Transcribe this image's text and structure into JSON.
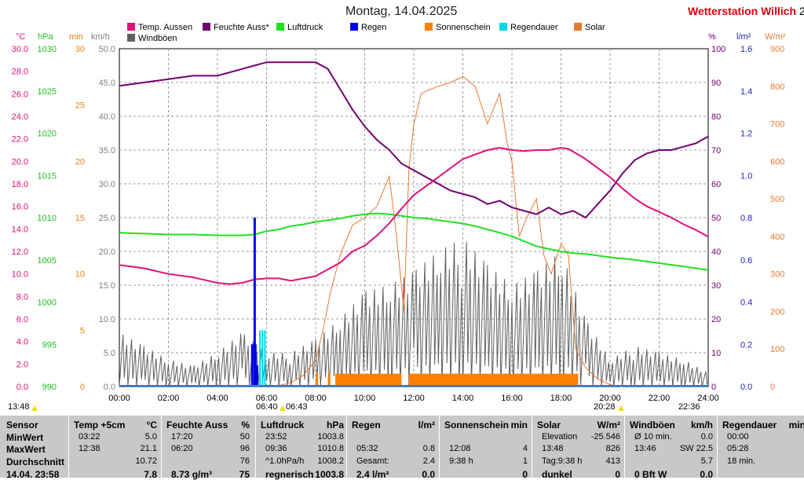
{
  "title": "Montag, 14.04.2025",
  "station": "Wetterstation Willich",
  "station_tail": "2",
  "legend": [
    {
      "label": "Temp. Aussen",
      "color": "#e0107a"
    },
    {
      "label": "Feuchte Auss*",
      "color": "#700070"
    },
    {
      "label": "Luftdruck",
      "color": "#20e020"
    },
    {
      "label": "Regen",
      "color": "#0000e8"
    },
    {
      "label": "Sonnenschein",
      "color": "#ff8000"
    },
    {
      "label": "Regendauer",
      "color": "#00d8e8"
    },
    {
      "label": "Solar",
      "color": "#e87830"
    },
    {
      "label": "Windböen",
      "color": "#606060"
    }
  ],
  "axes": {
    "temp": {
      "unit": "°C",
      "color": "#e0107a",
      "ticks": [
        "30.0",
        "28.0",
        "26.0",
        "24.0",
        "22.0",
        "20.0",
        "18.0",
        "16.0",
        "14.0",
        "12.0",
        "10.0",
        "8.0",
        "6.0",
        "4.0",
        "2.0",
        "0.0"
      ]
    },
    "pressure": {
      "unit": "hPa",
      "color": "#20c020",
      "ticks": [
        "1030",
        "1025",
        "1020",
        "1015",
        "1010",
        "1005",
        "1000",
        "995",
        "990"
      ]
    },
    "sun_min": {
      "unit": "min",
      "color": "#e88010",
      "ticks": [
        "30",
        "25",
        "20",
        "15",
        "10",
        "5",
        "0"
      ]
    },
    "wind": {
      "unit": "km/h",
      "color": "#808080",
      "ticks": [
        "50.0",
        "45.0",
        "40.0",
        "35.0",
        "30.0",
        "25.0",
        "20.0",
        "15.0",
        "10.0",
        "5.0",
        "0.0"
      ]
    },
    "humidity": {
      "unit": "%",
      "color": "#700070",
      "ticks": [
        "100",
        "90",
        "80",
        "70",
        "60",
        "50",
        "40",
        "30",
        "20",
        "10",
        "0"
      ]
    },
    "rain": {
      "unit": "l/m²",
      "color": "#2020c0",
      "ticks": [
        "1.6",
        "1.4",
        "1.2",
        "1.0",
        "0.8",
        "0.6",
        "0.4",
        "0.2",
        "0.0"
      ]
    },
    "solar": {
      "unit": "W/m²",
      "color": "#e87830",
      "ticks": [
        "900",
        "800",
        "700",
        "600",
        "500",
        "400",
        "300",
        "200",
        "100",
        "0"
      ]
    }
  },
  "xticks": [
    "00:00",
    "02:00",
    "04:00",
    "06:00",
    "08:00",
    "10:00",
    "12:00",
    "14:00",
    "16:00",
    "18:00",
    "20:00",
    "22:00",
    "24:00"
  ],
  "markers": {
    "current": "13:48",
    "sunrise": "06:40",
    "sunrise_civil": "06:43",
    "sunset": "20:28",
    "moon": "22:36"
  },
  "chart_data": {
    "type": "line",
    "x_unit": "hour of day",
    "xlim": [
      0,
      24
    ],
    "series": [
      {
        "name": "Temp. Aussen",
        "unit": "°C",
        "x": [
          0,
          1,
          2,
          3,
          4,
          4.5,
          5,
          5.5,
          6,
          6.5,
          7,
          7.5,
          8,
          8.5,
          9,
          9.5,
          10,
          10.5,
          11,
          11.5,
          12,
          12.5,
          13,
          13.5,
          14,
          14.5,
          15,
          15.5,
          16,
          16.5,
          17,
          17.5,
          18,
          18.3,
          18.7,
          19,
          19.5,
          20,
          20.5,
          21,
          21.5,
          22,
          22.5,
          23,
          23.5,
          24
        ],
        "y": [
          10.8,
          10.5,
          10.0,
          9.7,
          9.2,
          9.1,
          9.2,
          9.5,
          9.6,
          9.6,
          9.4,
          9.6,
          9.8,
          10.4,
          11.0,
          12.0,
          12.5,
          13.4,
          14.5,
          15.8,
          17.0,
          17.8,
          18.6,
          19.4,
          20.2,
          20.6,
          21.0,
          21.2,
          21.0,
          20.9,
          21.0,
          21.0,
          21.2,
          21.1,
          20.6,
          20.2,
          19.4,
          18.6,
          17.6,
          16.7,
          16.0,
          15.5,
          15.0,
          14.4,
          13.9,
          13.3
        ]
      },
      {
        "name": "Feuchte Auss*",
        "unit": "%",
        "x": [
          0,
          1,
          2,
          3,
          4,
          5,
          5.5,
          6,
          6.5,
          7,
          7.5,
          8,
          8.5,
          9,
          9.5,
          10,
          10.5,
          11,
          11.5,
          12,
          12.5,
          13,
          13.5,
          14,
          14.5,
          15,
          15.5,
          16,
          16.5,
          17,
          17.5,
          18,
          18.5,
          19,
          19.5,
          20,
          20.5,
          21,
          21.5,
          22,
          22.5,
          23,
          23.5,
          24
        ],
        "y": [
          89,
          90,
          91,
          92,
          92,
          94,
          95,
          96,
          96,
          96,
          96,
          96,
          94,
          88,
          82,
          77,
          73,
          70,
          66,
          64,
          62,
          60,
          58,
          57,
          56,
          54,
          55,
          53,
          52,
          51,
          53,
          51,
          52,
          50,
          54,
          58,
          63,
          67,
          69,
          70,
          70,
          71,
          72,
          74
        ]
      },
      {
        "name": "Luftdruck",
        "unit": "hPa",
        "x": [
          0,
          1,
          2,
          3,
          4,
          5,
          5.5,
          6,
          6.5,
          7,
          7.5,
          8,
          8.5,
          9,
          9.5,
          10,
          10.5,
          11,
          11.5,
          12,
          12.5,
          13,
          13.5,
          14,
          14.5,
          15,
          15.5,
          16,
          16.5,
          17,
          17.5,
          18,
          18.5,
          19,
          19.5,
          20,
          21,
          22,
          23,
          24
        ],
        "y": [
          1008.2,
          1008.1,
          1008.0,
          1008.0,
          1007.9,
          1007.9,
          1008.0,
          1008.4,
          1008.6,
          1009.0,
          1009.2,
          1009.5,
          1009.7,
          1009.9,
          1010.2,
          1010.4,
          1010.5,
          1010.4,
          1010.2,
          1010.0,
          1009.9,
          1009.7,
          1009.5,
          1009.3,
          1009.0,
          1008.6,
          1008.2,
          1007.8,
          1007.2,
          1006.6,
          1006.3,
          1006.0,
          1005.8,
          1005.7,
          1005.5,
          1005.3,
          1005.0,
          1004.6,
          1004.2,
          1003.8
        ]
      },
      {
        "name": "Regen",
        "unit": "l/m²",
        "x": [
          5.4,
          5.5,
          5.53,
          5.6
        ],
        "y": [
          0.2,
          0.8,
          0.2,
          0.1
        ]
      },
      {
        "name": "Sonnenschein",
        "unit": "min",
        "segments": [
          [
            8.0,
            8.1
          ],
          [
            8.5,
            8.6
          ],
          [
            8.8,
            11.5
          ],
          [
            11.8,
            18.7
          ],
          [
            12.0,
            12.2
          ],
          [
            18.0,
            18.1
          ]
        ],
        "level": 1
      },
      {
        "name": "Regendauer",
        "unit": "min",
        "x": [
          5.7,
          5.8,
          5.9
        ],
        "y": [
          5,
          5,
          5
        ]
      },
      {
        "name": "Solar",
        "unit": "W/m²",
        "x": [
          6.5,
          7,
          7.5,
          8,
          8.3,
          8.6,
          9,
          9.5,
          10,
          10.5,
          11,
          11.3,
          11.6,
          11.8,
          12,
          12.3,
          12.6,
          13,
          13.5,
          14,
          14.5,
          15,
          15.5,
          15.8,
          16,
          16.3,
          16.6,
          17,
          17.3,
          17.6,
          18,
          18.3,
          18.6,
          19,
          19.5,
          20,
          20.5
        ],
        "y": [
          3,
          10,
          30,
          70,
          150,
          250,
          350,
          430,
          450,
          480,
          560,
          400,
          200,
          580,
          700,
          780,
          790,
          800,
          810,
          826,
          800,
          700,
          780,
          650,
          600,
          400,
          450,
          500,
          350,
          300,
          380,
          350,
          100,
          50,
          20,
          5,
          0
        ]
      },
      {
        "name": "Windböen",
        "unit": "km/h",
        "x": [
          0,
          1,
          2,
          3,
          4,
          5,
          6,
          7,
          8,
          9,
          10,
          11,
          12,
          13,
          14,
          15,
          16,
          17,
          18,
          19,
          20,
          21,
          22,
          23,
          24
        ],
        "y": [
          8,
          6,
          4,
          3,
          5,
          8,
          5,
          5,
          7,
          10,
          14,
          15,
          17,
          20,
          22,
          18,
          15,
          17,
          20,
          10,
          4,
          6,
          5,
          4,
          2
        ]
      }
    ]
  },
  "table": {
    "row_labels": [
      "Sensor",
      "MinWert",
      "MaxWert",
      "Durchschnitt",
      "14.04. 23:58"
    ],
    "cols": [
      {
        "head": [
          "Temp +5cm",
          "°C"
        ],
        "rows": [
          [
            "03:22",
            "5.0"
          ],
          [
            "12:38",
            "21.1"
          ],
          [
            "",
            "10.72"
          ],
          [
            "",
            "7.8"
          ]
        ]
      },
      {
        "head": [
          "Feuchte Auss",
          "%"
        ],
        "rows": [
          [
            "17:20",
            "50"
          ],
          [
            "06:20",
            "96"
          ],
          [
            "",
            "76"
          ],
          [
            "8.73 g/m³",
            "75"
          ]
        ]
      },
      {
        "head": [
          "Luftdruck",
          "hPa"
        ],
        "rows": [
          [
            "23:52",
            "1003.8"
          ],
          [
            "09:36",
            "1010.8"
          ],
          [
            "^1.0hPa/h",
            "1008.2"
          ],
          [
            "regnerisch",
            "↓1003.8"
          ]
        ]
      },
      {
        "head": [
          "Regen",
          "l/m²"
        ],
        "rows": [
          [
            "",
            ""
          ],
          [
            "05:32",
            "0.8"
          ],
          [
            "Gesamt:",
            "2.4"
          ],
          [
            "2.4 l/m²",
            "0.0"
          ]
        ]
      },
      {
        "head": [
          "Sonnenschein",
          "min"
        ],
        "rows": [
          [
            "",
            ""
          ],
          [
            "12:08",
            "4"
          ],
          [
            "9:38 h",
            "1"
          ],
          [
            "",
            "0"
          ]
        ]
      },
      {
        "head": [
          "Solar",
          "W/m²"
        ],
        "rows": [
          [
            "Elevation",
            "-25.546"
          ],
          [
            "13:48",
            "826"
          ],
          [
            "Tag:9:38 h",
            "413"
          ],
          [
            "dunkel",
            "0"
          ]
        ]
      },
      {
        "head": [
          "Windböen",
          "km/h"
        ],
        "rows": [
          [
            "Ø 10 min.",
            "0.0"
          ],
          [
            "13:46",
            "SW 22.5"
          ],
          [
            "",
            "5.7"
          ],
          [
            "0 Bft W",
            "0.0"
          ]
        ]
      },
      {
        "head": [
          "Regendauer",
          "min"
        ],
        "rows": [
          [
            "00:00",
            ""
          ],
          [
            "05:28",
            ""
          ],
          [
            "18 min.",
            ""
          ],
          [
            "",
            ""
          ]
        ]
      }
    ]
  }
}
